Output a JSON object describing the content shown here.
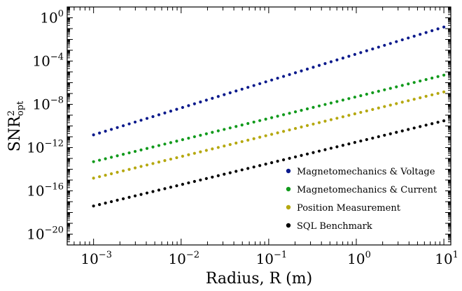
{
  "chart_data": {
    "type": "scatter",
    "title": "",
    "xlabel": "Radius, R (m)",
    "ylabel": "SNR_opt^2",
    "x_scale": "log",
    "y_scale": "log",
    "xlim": [
      0.0005,
      12
    ],
    "ylim": [
      1e-21,
      10.0
    ],
    "grid": false,
    "legend_position": "bottom-right",
    "x_ticks": [
      {
        "exp": 1,
        "label_base": "10",
        "label_exp": "−3",
        "value": 0.001
      },
      {
        "exp": 2,
        "label_base": "10",
        "label_exp": "−2",
        "value": 0.01
      },
      {
        "exp": 3,
        "label_base": "10",
        "label_exp": "−1",
        "value": 0.1
      },
      {
        "exp": 4,
        "label_base": "10",
        "label_exp": "0",
        "value": 1
      },
      {
        "exp": 5,
        "label_base": "10",
        "label_exp": "1",
        "value": 10
      }
    ],
    "y_ticks": [
      {
        "label_base": "10",
        "label_exp": "0",
        "value": 1
      },
      {
        "label_base": "10",
        "label_exp": "−4",
        "value": 0.0001
      },
      {
        "label_base": "10",
        "label_exp": "−8",
        "value": 1e-08
      },
      {
        "label_base": "10",
        "label_exp": "−12",
        "value": 1e-12
      },
      {
        "label_base": "10",
        "label_exp": "−16",
        "value": 1e-16
      },
      {
        "label_base": "10",
        "label_exp": "−20",
        "value": 1e-20
      }
    ],
    "x_range": [
      0.001,
      10
    ],
    "points_per_series": 60,
    "series": [
      {
        "name": "Magnetomechanics & Voltage",
        "color": "#0b1a8c",
        "y_start": 1.5e-11,
        "y_end": 0.14
      },
      {
        "name": "Magnetomechanics & Current",
        "color": "#119a1c",
        "y_start": 5e-14,
        "y_end": 5e-06
      },
      {
        "name": "Position Measurement",
        "color": "#b5a80f",
        "y_start": 1.5e-15,
        "y_end": 1.4e-07
      },
      {
        "name": "SQL Benchmark",
        "color": "#000000",
        "y_start": 4e-18,
        "y_end": 3e-10
      }
    ]
  }
}
